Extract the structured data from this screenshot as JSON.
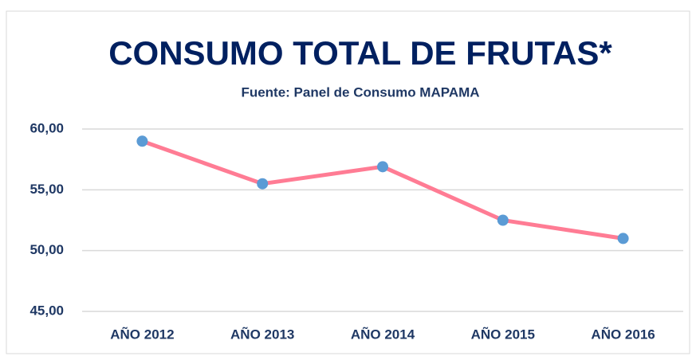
{
  "chart_data": {
    "type": "line",
    "title": "CONSUMO TOTAL DE FRUTAS*",
    "subtitle": "Fuente: Panel de Consumo MAPAMA",
    "categories": [
      "AÑO 2012",
      "AÑO 2013",
      "AÑO 2014",
      "AÑO 2015",
      "AÑO 2016"
    ],
    "series": [
      {
        "name": "Consumo total de frutas",
        "color": "#ff7c94",
        "marker_color": "#5b9bd5",
        "values": [
          59.0,
          55.5,
          56.9,
          52.5,
          51.0
        ]
      }
    ],
    "ylim": [
      45,
      60
    ],
    "yticks": [
      {
        "value": 45,
        "label": "45,00"
      },
      {
        "value": 50,
        "label": "50,00"
      },
      {
        "value": 55,
        "label": "55,00"
      },
      {
        "value": 60,
        "label": "60,00"
      }
    ],
    "grid": true
  }
}
